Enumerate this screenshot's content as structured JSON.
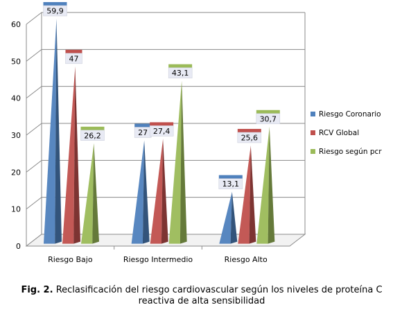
{
  "chart_data": {
    "type": "bar",
    "categories": [
      "Riesgo Bajo",
      "Riesgo Intermedio",
      "Riesgo Alto"
    ],
    "series": [
      {
        "name": "Riesgo Coronario",
        "values": [
          59.9,
          27,
          13.1
        ],
        "labels": [
          "59,9",
          "27",
          "13,1"
        ],
        "color": "#4f81bd"
      },
      {
        "name": "RCV Global",
        "values": [
          47,
          27.4,
          25.6
        ],
        "labels": [
          "47",
          "27,4",
          "25,6"
        ],
        "color": "#c0504d"
      },
      {
        "name": "Riesgo según pcr",
        "values": [
          26.2,
          43.1,
          30.7
        ],
        "labels": [
          "26,2",
          "43,1",
          "30,7"
        ],
        "color": "#9bbb59"
      }
    ],
    "ylim": [
      0,
      60
    ],
    "yticks": [
      "0",
      "10",
      "20",
      "30",
      "40",
      "50",
      "60"
    ],
    "grid": true,
    "legend_position": "right",
    "bar_shape": "3d-cone"
  },
  "caption": {
    "prefix": "Fig. 2.",
    "text": "Reclasificación del riesgo cardiovascular según los niveles de proteína C reactiva de alta sensibilidad"
  }
}
